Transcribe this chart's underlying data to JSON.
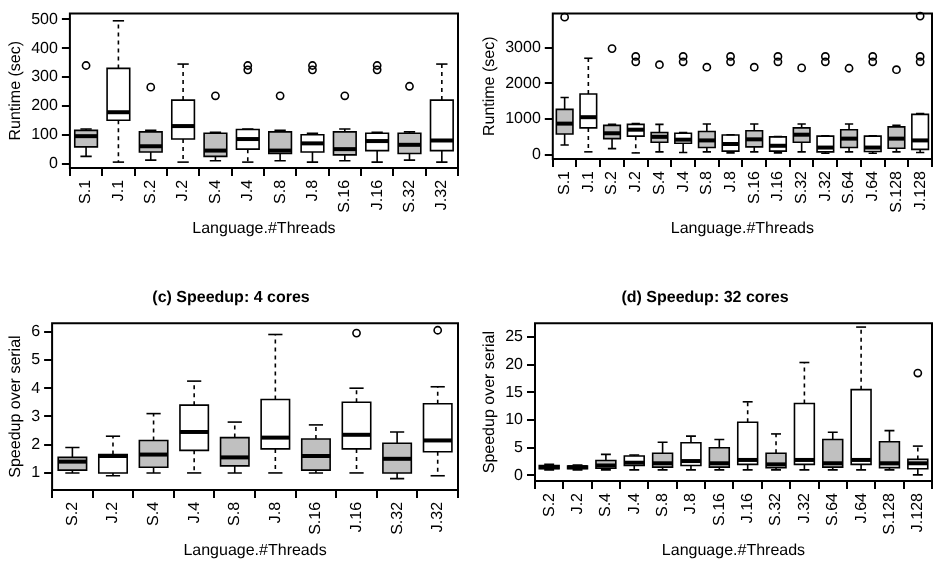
{
  "chart_data": [
    {
      "type": "box",
      "xlabel": "Language.#Threads",
      "ylabel": "Runtime (sec)",
      "categories": [
        "S.1",
        "J.1",
        "S.2",
        "J.2",
        "S.4",
        "J.4",
        "S.8",
        "J.8",
        "S.16",
        "J.16",
        "S.32",
        "J.32"
      ],
      "colors": [
        "#c0c0c0",
        "#ffffff",
        "#c0c0c0",
        "#ffffff",
        "#c0c0c0",
        "#ffffff",
        "#c0c0c0",
        "#ffffff",
        "#c0c0c0",
        "#ffffff",
        "#c0c0c0",
        "#ffffff"
      ],
      "boxes": [
        {
          "low": 25,
          "q1": 58,
          "median": 95,
          "q3": 115,
          "high": 120,
          "outliers": [
            340
          ]
        },
        {
          "low": 5,
          "q1": 150,
          "median": 178,
          "q3": 330,
          "high": 495
        },
        {
          "low": 12,
          "q1": 40,
          "median": 60,
          "q3": 110,
          "high": 115,
          "outliers": [
            265
          ]
        },
        {
          "low": 5,
          "q1": 85,
          "median": 130,
          "q3": 220,
          "high": 345
        },
        {
          "low": 10,
          "q1": 25,
          "median": 45,
          "q3": 105,
          "high": 108,
          "outliers": [
            235
          ]
        },
        {
          "low": 5,
          "q1": 50,
          "median": 85,
          "q3": 118,
          "high": 120,
          "outliers": [
            325,
            340
          ]
        },
        {
          "low": 10,
          "q1": 35,
          "median": 45,
          "q3": 110,
          "high": 115,
          "outliers": [
            235
          ]
        },
        {
          "low": 5,
          "q1": 40,
          "median": 70,
          "q3": 100,
          "high": 105,
          "outliers": [
            325,
            340
          ]
        },
        {
          "low": 10,
          "q1": 30,
          "median": 50,
          "q3": 110,
          "high": 120,
          "outliers": [
            235
          ]
        },
        {
          "low": 5,
          "q1": 45,
          "median": 78,
          "q3": 105,
          "high": 108,
          "outliers": [
            325,
            340
          ]
        },
        {
          "low": 12,
          "q1": 35,
          "median": 65,
          "q3": 105,
          "high": 110,
          "outliers": [
            268
          ]
        },
        {
          "low": 5,
          "q1": 45,
          "median": 80,
          "q3": 220,
          "high": 345
        }
      ],
      "ylim": [
        -15,
        520
      ],
      "yticks": [
        0,
        100,
        200,
        300,
        400,
        500
      ]
    },
    {
      "type": "box",
      "xlabel": "Language.#Threads",
      "ylabel": "Runtime (sec)",
      "categories": [
        "S.1",
        "J.1",
        "S.2",
        "J.2",
        "S.4",
        "J.4",
        "S.8",
        "J.8",
        "S.16",
        "J.16",
        "S.32",
        "J.32",
        "S.64",
        "J.64",
        "S.128",
        "J.128"
      ],
      "colors": [
        "#c0c0c0",
        "#ffffff",
        "#c0c0c0",
        "#ffffff",
        "#c0c0c0",
        "#ffffff",
        "#c0c0c0",
        "#ffffff",
        "#c0c0c0",
        "#ffffff",
        "#c0c0c0",
        "#ffffff",
        "#c0c0c0",
        "#ffffff",
        "#c0c0c0",
        "#ffffff"
      ],
      "boxes": [
        {
          "low": 270,
          "q1": 580,
          "median": 870,
          "q3": 1270,
          "high": 1600,
          "outliers": [
            3850
          ]
        },
        {
          "low": 80,
          "q1": 750,
          "median": 1050,
          "q3": 1700,
          "high": 2700
        },
        {
          "low": 170,
          "q1": 450,
          "median": 600,
          "q3": 820,
          "high": 850,
          "outliers": [
            2970
          ]
        },
        {
          "low": 50,
          "q1": 520,
          "median": 700,
          "q3": 850,
          "high": 870,
          "outliers": [
            2600,
            2750
          ]
        },
        {
          "low": 80,
          "q1": 350,
          "median": 500,
          "q3": 620,
          "high": 850,
          "outliers": [
            2520
          ]
        },
        {
          "low": 60,
          "q1": 320,
          "median": 420,
          "q3": 600,
          "high": 620,
          "outliers": [
            2600,
            2750
          ]
        },
        {
          "low": 80,
          "q1": 200,
          "median": 400,
          "q3": 650,
          "high": 860,
          "outliers": [
            2450
          ]
        },
        {
          "low": 50,
          "q1": 100,
          "median": 300,
          "q3": 550,
          "high": 560,
          "outliers": [
            2600,
            2750
          ]
        },
        {
          "low": 80,
          "q1": 220,
          "median": 430,
          "q3": 670,
          "high": 860,
          "outliers": [
            2450
          ]
        },
        {
          "low": 50,
          "q1": 100,
          "median": 250,
          "q3": 500,
          "high": 510,
          "outliers": [
            2600,
            2750
          ]
        },
        {
          "low": 80,
          "q1": 350,
          "median": 560,
          "q3": 750,
          "high": 860,
          "outliers": [
            2430
          ]
        },
        {
          "low": 40,
          "q1": 80,
          "median": 200,
          "q3": 520,
          "high": 530,
          "outliers": [
            2600,
            2750
          ]
        },
        {
          "low": 80,
          "q1": 200,
          "median": 450,
          "q3": 700,
          "high": 860,
          "outliers": [
            2420
          ]
        },
        {
          "low": 40,
          "q1": 90,
          "median": 200,
          "q3": 520,
          "high": 530,
          "outliers": [
            2600,
            2750
          ]
        },
        {
          "low": 80,
          "q1": 180,
          "median": 450,
          "q3": 780,
          "high": 820,
          "outliers": [
            2380
          ]
        },
        {
          "low": 60,
          "q1": 150,
          "median": 400,
          "q3": 1130,
          "high": 1150,
          "outliers": [
            2600,
            2750,
            3880
          ]
        }
      ],
      "ylim": [
        -120,
        3950
      ],
      "yticks": [
        0,
        1000,
        2000,
        3000
      ]
    },
    {
      "type": "box",
      "title": "(c) Speedup: 4 cores",
      "xlabel": "Language.#Threads",
      "ylabel": "Speedup over serial",
      "categories": [
        "S.2",
        "J.2",
        "S.4",
        "J.4",
        "S.8",
        "J.8",
        "S.16",
        "J.16",
        "S.32",
        "J.32"
      ],
      "colors": [
        "#c0c0c0",
        "#ffffff",
        "#c0c0c0",
        "#ffffff",
        "#c0c0c0",
        "#ffffff",
        "#c0c0c0",
        "#ffffff",
        "#c0c0c0",
        "#ffffff"
      ],
      "boxes": [
        {
          "low": 1.0,
          "q1": 1.1,
          "median": 1.4,
          "q3": 1.55,
          "high": 1.9
        },
        {
          "low": 0.9,
          "q1": 1.0,
          "median": 1.6,
          "q3": 1.65,
          "high": 2.3
        },
        {
          "low": 1.0,
          "q1": 1.2,
          "median": 1.65,
          "q3": 2.15,
          "high": 3.1
        },
        {
          "low": 1.0,
          "q1": 1.8,
          "median": 2.45,
          "q3": 3.4,
          "high": 4.25
        },
        {
          "low": 1.0,
          "q1": 1.25,
          "median": 1.55,
          "q3": 2.25,
          "high": 2.8
        },
        {
          "low": 1.0,
          "q1": 1.85,
          "median": 2.25,
          "q3": 3.6,
          "high": 5.9
        },
        {
          "low": 1.0,
          "q1": 1.1,
          "median": 1.6,
          "q3": 2.2,
          "high": 2.7
        },
        {
          "low": 1.0,
          "q1": 1.85,
          "median": 2.35,
          "q3": 3.5,
          "high": 4.0,
          "outliers": [
            5.95
          ]
        },
        {
          "low": 0.8,
          "q1": 1.0,
          "median": 1.5,
          "q3": 2.05,
          "high": 2.45
        },
        {
          "low": 0.9,
          "q1": 1.75,
          "median": 2.15,
          "q3": 3.45,
          "high": 4.05,
          "outliers": [
            6.05
          ]
        }
      ],
      "ylim": [
        0.4,
        6.3
      ],
      "yticks": [
        1,
        2,
        3,
        4,
        5,
        6
      ]
    },
    {
      "type": "box",
      "title": "(d) Speedup: 32 cores",
      "xlabel": "Language.#Threads",
      "ylabel": "Speedup over serial",
      "categories": [
        "S.2",
        "J.2",
        "S.4",
        "J.4",
        "S.8",
        "J.8",
        "S.16",
        "J.16",
        "S.32",
        "J.32",
        "S.64",
        "J.64",
        "S.128",
        "J.128"
      ],
      "colors": [
        "#c0c0c0",
        "#ffffff",
        "#c0c0c0",
        "#ffffff",
        "#c0c0c0",
        "#ffffff",
        "#c0c0c0",
        "#ffffff",
        "#c0c0c0",
        "#ffffff",
        "#c0c0c0",
        "#ffffff",
        "#c0c0c0",
        "#ffffff"
      ],
      "boxes": [
        {
          "low": 1.0,
          "q1": 1.2,
          "median": 1.5,
          "q3": 1.8,
          "high": 2.0
        },
        {
          "low": 1.0,
          "q1": 1.2,
          "median": 1.5,
          "q3": 1.7,
          "high": 1.9
        },
        {
          "low": 1.0,
          "q1": 1.3,
          "median": 1.8,
          "q3": 2.7,
          "high": 3.8
        },
        {
          "low": 1.0,
          "q1": 1.8,
          "median": 2.3,
          "q3": 3.5,
          "high": 3.7
        },
        {
          "low": 1.0,
          "q1": 1.5,
          "median": 2.2,
          "q3": 4.0,
          "high": 6.0
        },
        {
          "low": 1.0,
          "q1": 1.8,
          "median": 2.6,
          "q3": 5.9,
          "high": 7.1
        },
        {
          "low": 1.0,
          "q1": 1.5,
          "median": 2.2,
          "q3": 5.0,
          "high": 6.5
        },
        {
          "low": 1.0,
          "q1": 2.0,
          "median": 2.8,
          "q3": 9.6,
          "high": 13.3
        },
        {
          "low": 1.0,
          "q1": 1.4,
          "median": 2.0,
          "q3": 4.0,
          "high": 7.5
        },
        {
          "low": 1.0,
          "q1": 2.0,
          "median": 2.8,
          "q3": 13.0,
          "high": 20.4
        },
        {
          "low": 1.0,
          "q1": 1.5,
          "median": 2.2,
          "q3": 6.5,
          "high": 7.8
        },
        {
          "low": 1.0,
          "q1": 2.0,
          "median": 2.8,
          "q3": 15.5,
          "high": 26.8
        },
        {
          "low": 1.0,
          "q1": 1.4,
          "median": 2.2,
          "q3": 6.1,
          "high": 8.1
        },
        {
          "low": 0.1,
          "q1": 1.2,
          "median": 2.2,
          "q3": 2.9,
          "high": 5.3,
          "outliers": [
            18.5
          ]
        }
      ],
      "ylim": [
        -1,
        27.5
      ],
      "yticks": [
        0,
        5,
        10,
        15,
        20,
        25
      ]
    }
  ]
}
